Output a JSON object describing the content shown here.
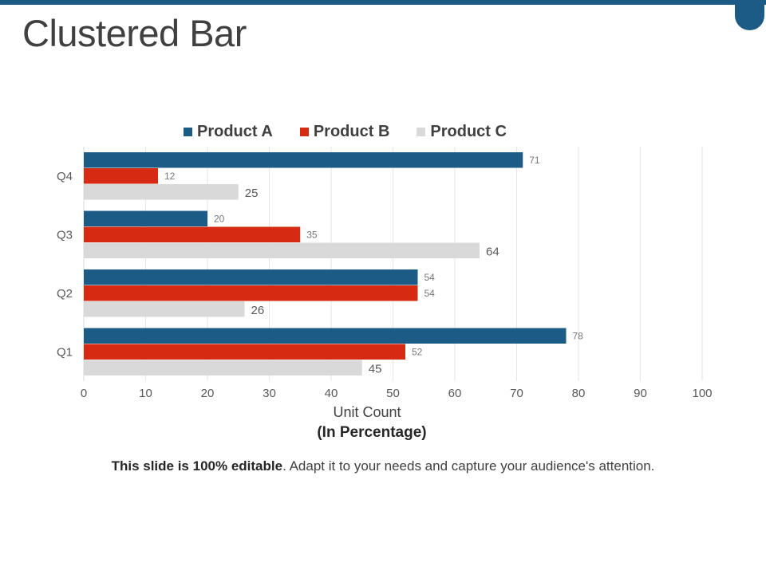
{
  "slide": {
    "title": "Clustered Bar",
    "footer_bold": "This slide is 100% editable",
    "footer_text": ". Adapt it to your needs and capture your audience's attention."
  },
  "colors": {
    "accent": "#1b5b86",
    "product_a": "#1b5b86",
    "product_b": "#d62b12",
    "product_c": "#d9d9d9"
  },
  "chart_data": {
    "type": "bar",
    "orientation": "horizontal",
    "categories": [
      "Q1",
      "Q2",
      "Q3",
      "Q4"
    ],
    "series": [
      {
        "name": "Product A",
        "color": "#1b5b86",
        "values": [
          78,
          54,
          20,
          71
        ]
      },
      {
        "name": "Product B",
        "color": "#d62b12",
        "values": [
          52,
          54,
          35,
          12
        ]
      },
      {
        "name": "Product C",
        "color": "#d9d9d9",
        "values": [
          45,
          26,
          64,
          25
        ]
      }
    ],
    "xlabel": "Unit Count",
    "xlabel_sub": "(In Percentage)",
    "xlim": [
      0,
      100
    ],
    "xticks": [
      "0",
      "10",
      "20",
      "30",
      "40",
      "50",
      "60",
      "70",
      "80",
      "90",
      "100"
    ],
    "grid": "vertical",
    "legend_position": "top"
  }
}
